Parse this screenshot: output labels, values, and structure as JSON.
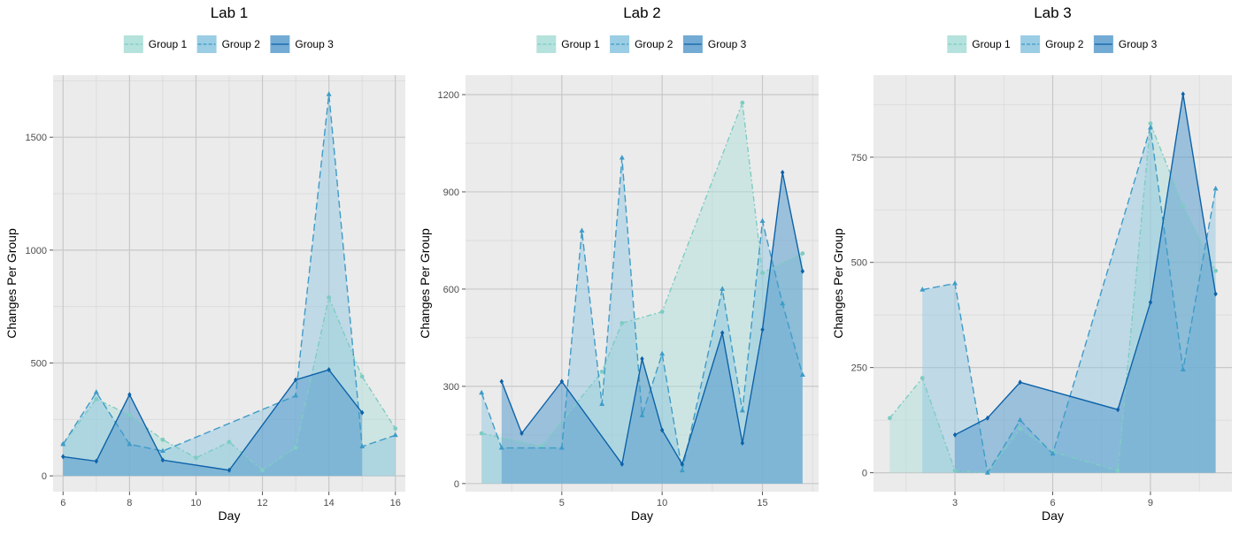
{
  "chart_data": [
    {
      "type": "area",
      "title": "Lab 1",
      "xlabel": "Day",
      "ylabel": "Changes Per Group",
      "xlim": [
        5.7,
        16.3
      ],
      "ylim": [
        -70,
        1775
      ],
      "xticks": [
        6,
        8,
        10,
        12,
        14,
        16
      ],
      "yticks": [
        0,
        500,
        1000,
        1500
      ],
      "grid": true,
      "legend_position": "top",
      "series": [
        {
          "name": "Group 1",
          "x": [
            6,
            7,
            8,
            9,
            10,
            11,
            12,
            13,
            14,
            15,
            16
          ],
          "values": [
            140,
            340,
            270,
            160,
            80,
            150,
            25,
            125,
            790,
            440,
            210
          ]
        },
        {
          "name": "Group 2",
          "x": [
            6,
            7,
            8,
            9,
            13,
            14,
            15,
            16
          ],
          "values": [
            140,
            370,
            140,
            110,
            355,
            1690,
            130,
            180
          ]
        },
        {
          "name": "Group 3",
          "x": [
            6,
            7,
            8,
            9,
            11,
            13,
            14,
            15
          ],
          "values": [
            85,
            65,
            360,
            70,
            25,
            425,
            470,
            280
          ]
        }
      ]
    },
    {
      "type": "area",
      "title": "Lab 2",
      "xlabel": "Day",
      "ylabel": "Changes Per Group",
      "xlim": [
        0.2,
        17.8
      ],
      "ylim": [
        -25,
        1260
      ],
      "xticks": [
        5,
        10,
        15
      ],
      "yticks": [
        0,
        300,
        600,
        900,
        1200
      ],
      "grid": true,
      "legend_position": "top",
      "series": [
        {
          "name": "Group 1",
          "x": [
            1,
            4,
            7,
            8,
            10,
            14,
            15,
            17
          ],
          "values": [
            155,
            115,
            345,
            495,
            530,
            1175,
            650,
            710
          ]
        },
        {
          "name": "Group 2",
          "x": [
            1,
            2,
            5,
            6,
            7,
            8,
            9,
            10,
            11,
            13,
            14,
            15,
            16,
            17
          ],
          "values": [
            280,
            110,
            110,
            780,
            245,
            1005,
            210,
            400,
            40,
            600,
            225,
            810,
            555,
            335
          ]
        },
        {
          "name": "Group 3",
          "x": [
            2,
            3,
            5,
            8,
            9,
            10,
            11,
            13,
            14,
            15,
            16,
            17
          ],
          "values": [
            315,
            155,
            315,
            60,
            385,
            165,
            60,
            465,
            125,
            475,
            960,
            655
          ]
        }
      ]
    },
    {
      "type": "area",
      "title": "Lab 3",
      "xlabel": "Day",
      "ylabel": "Changes Per Group",
      "xlim": [
        0.5,
        11.5
      ],
      "ylim": [
        -45,
        945
      ],
      "xticks": [
        3,
        6,
        9
      ],
      "yticks": [
        0,
        250,
        500,
        750
      ],
      "grid": true,
      "legend_position": "top",
      "series": [
        {
          "name": "Group 1",
          "x": [
            1,
            2,
            3,
            4,
            5,
            6,
            8,
            9,
            10,
            11
          ],
          "values": [
            130,
            225,
            5,
            0,
            105,
            50,
            5,
            830,
            635,
            480
          ]
        },
        {
          "name": "Group 2",
          "x": [
            2,
            3,
            4,
            5,
            6,
            9,
            10,
            11
          ],
          "values": [
            435,
            450,
            0,
            125,
            45,
            820,
            245,
            675
          ]
        },
        {
          "name": "Group 3",
          "x": [
            3,
            4,
            5,
            8,
            9,
            10,
            11
          ],
          "values": [
            90,
            130,
            215,
            150,
            405,
            900,
            425
          ]
        }
      ]
    }
  ],
  "colors": {
    "group1_line": "#7ECCC4",
    "group1_fill": "#A8DDD6",
    "group2_line": "#3E9CC8",
    "group2_fill": "#8AC4DF",
    "group3_line": "#0D62A8",
    "group3_fill": "#5A9CCD",
    "panel_bg": "#EBEBEB",
    "grid_major": "#C8C8C8",
    "grid_minor": "#DADADA"
  }
}
